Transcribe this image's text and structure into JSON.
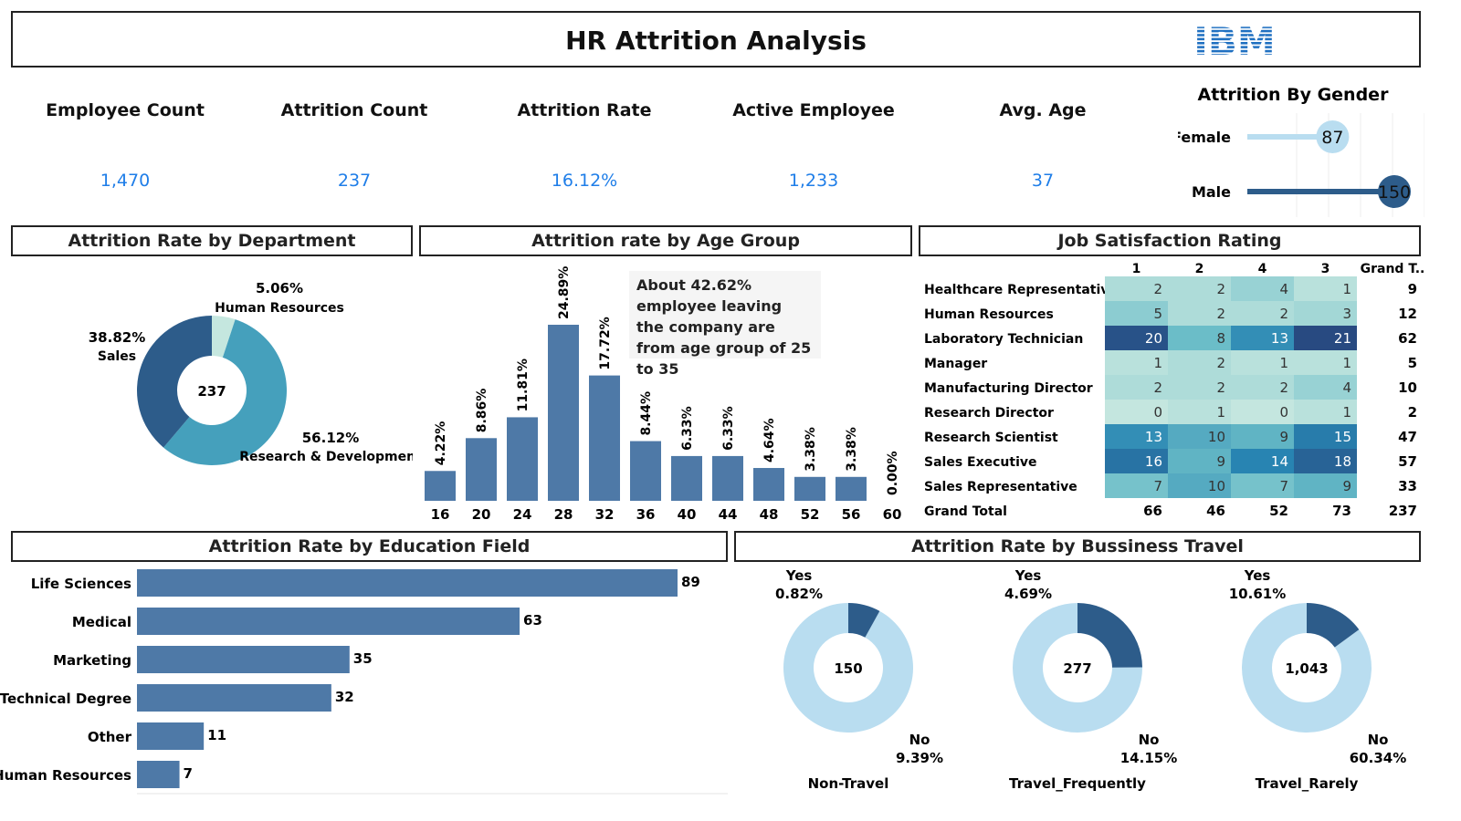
{
  "title": "HR Attrition Analysis",
  "logo_text": "IBM",
  "colors": {
    "dark": "#2d5c8a",
    "mid": "#45a0bc",
    "light": "#b9ddf0",
    "pale": "#c5e7df",
    "bar": "#4e79a7",
    "kpi": "#1f7ee8"
  },
  "kpis": [
    {
      "label": "Employee Count",
      "value": "1,470"
    },
    {
      "label": "Attrition Count",
      "value": "237"
    },
    {
      "label": "Attrition Rate",
      "value": "16.12%"
    },
    {
      "label": "Active Employee",
      "value": "1,233"
    },
    {
      "label": "Avg. Age",
      "value": "37"
    }
  ],
  "sections": {
    "department": "Attrition Rate by Department",
    "age_group": "Attrition rate by Age Group",
    "job_satisfaction": "Job Satisfaction Rating",
    "education": "Attrition Rate by Education Field",
    "travel": "Attrition Rate by Bussiness Travel"
  },
  "age_note": "About 42.62% employee leaving the company are from age group of 25 to 35",
  "chart_data": [
    {
      "id": "gender",
      "type": "bar",
      "title": "Attrition By Gender",
      "categories": [
        "Female",
        "Male"
      ],
      "values": [
        87,
        150
      ]
    },
    {
      "id": "department",
      "type": "pie",
      "center_label": "237",
      "categories": [
        "Human Resources",
        "Research & Development",
        "Sales"
      ],
      "values": [
        5.06,
        56.12,
        38.82
      ],
      "labels": [
        "5.06%",
        "56.12%",
        "38.82%"
      ]
    },
    {
      "id": "age_group",
      "type": "bar",
      "categories": [
        "16",
        "20",
        "24",
        "28",
        "32",
        "36",
        "40",
        "44",
        "48",
        "52",
        "56",
        "60"
      ],
      "values": [
        4.22,
        8.86,
        11.81,
        24.89,
        17.72,
        8.44,
        6.33,
        6.33,
        4.64,
        3.38,
        3.38,
        0.0
      ],
      "labels": [
        "4.22%",
        "8.86%",
        "11.81%",
        "24.89%",
        "17.72%",
        "8.44%",
        "6.33%",
        "6.33%",
        "4.64%",
        "3.38%",
        "3.38%",
        "0.00%"
      ]
    },
    {
      "id": "job_satisfaction",
      "type": "heatmap",
      "columns": [
        "1",
        "2",
        "4",
        "3"
      ],
      "total_header": "Grand T..",
      "rows": [
        {
          "name": "Healthcare Representative",
          "values": [
            2,
            2,
            4,
            1
          ],
          "total": 9
        },
        {
          "name": "Human Resources",
          "values": [
            5,
            2,
            2,
            3
          ],
          "total": 12
        },
        {
          "name": "Laboratory Technician",
          "values": [
            20,
            8,
            13,
            21
          ],
          "total": 62
        },
        {
          "name": "Manager",
          "values": [
            1,
            2,
            1,
            1
          ],
          "total": 5
        },
        {
          "name": "Manufacturing Director",
          "values": [
            2,
            2,
            2,
            4
          ],
          "total": 10
        },
        {
          "name": "Research Director",
          "values": [
            0,
            1,
            0,
            1
          ],
          "total": 2
        },
        {
          "name": "Research Scientist",
          "values": [
            13,
            10,
            9,
            15
          ],
          "total": 47
        },
        {
          "name": "Sales Executive",
          "values": [
            16,
            9,
            14,
            18
          ],
          "total": 57
        },
        {
          "name": "Sales Representative",
          "values": [
            7,
            10,
            7,
            9
          ],
          "total": 33
        }
      ],
      "grand_total_label": "Grand Total",
      "grand_totals": [
        66,
        46,
        52,
        73
      ],
      "grand_total": 237
    },
    {
      "id": "education",
      "type": "bar",
      "orientation": "horizontal",
      "categories": [
        "Life Sciences",
        "Medical",
        "Marketing",
        "Technical Degree",
        "Other",
        "Human Resources"
      ],
      "values": [
        89,
        63,
        35,
        32,
        11,
        7
      ]
    },
    {
      "id": "travel",
      "type": "pie",
      "charts": [
        {
          "name": "Non-Travel",
          "center_label": "150",
          "yes_label": "Yes",
          "yes": "0.82%",
          "yes_value": 0.82,
          "no_label": "No",
          "no": "9.39%",
          "no_value": 9.39
        },
        {
          "name": "Travel_Frequently",
          "center_label": "277",
          "yes_label": "Yes",
          "yes": "4.69%",
          "yes_value": 4.69,
          "no_label": "No",
          "no": "14.15%",
          "no_value": 14.15
        },
        {
          "name": "Travel_Rarely",
          "center_label": "1,043",
          "yes_label": "Yes",
          "yes": "10.61%",
          "yes_value": 10.61,
          "no_label": "No",
          "no": "60.34%",
          "no_value": 60.34
        }
      ]
    }
  ]
}
